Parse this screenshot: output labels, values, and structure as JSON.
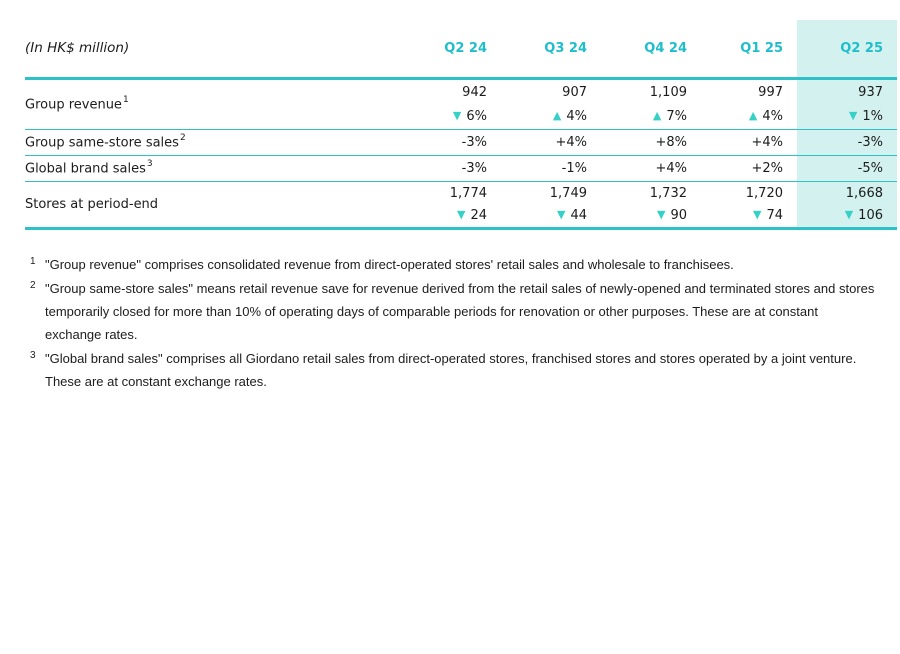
{
  "colors": {
    "accent_teal": "#2fc1c9",
    "header_text_teal": "#1fbecb",
    "arrow_teal": "#35d1c8",
    "highlight_bg": "#d3f1ef",
    "body_text": "#1c1c1c"
  },
  "table": {
    "unit_label": "(In HK$ million)",
    "columns": [
      "Q2 24",
      "Q3 24",
      "Q4 24",
      "Q1 25",
      "Q2 25"
    ],
    "highlighted_column": "Q2 25",
    "rows": [
      {
        "label": "Group revenue",
        "sup": "1",
        "values": [
          "942",
          "907",
          "1,109",
          "997",
          "937"
        ],
        "changes": [
          {
            "arrow": "▼",
            "text": "6%"
          },
          {
            "arrow": "▲",
            "text": "4%"
          },
          {
            "arrow": "▲",
            "text": "7%"
          },
          {
            "arrow": "▲",
            "text": "4%"
          },
          {
            "arrow": "▼",
            "text": "1%"
          }
        ]
      },
      {
        "label": "Group same-store sales",
        "sup": "2",
        "values": [
          "-3%",
          "+4%",
          "+8%",
          "+4%",
          "-3%"
        ]
      },
      {
        "label": "Global brand sales",
        "sup": "3",
        "values": [
          "-3%",
          "-1%",
          "+4%",
          "+2%",
          "-5%"
        ]
      },
      {
        "label": "Stores at period-end",
        "values": [
          "1,774",
          "1,749",
          "1,732",
          "1,720",
          "1,668"
        ],
        "changes": [
          {
            "arrow": "▼",
            "text": "24"
          },
          {
            "arrow": "▼",
            "text": "44"
          },
          {
            "arrow": "▼",
            "text": "90"
          },
          {
            "arrow": "▼",
            "text": "74"
          },
          {
            "arrow": "▼",
            "text": "106"
          }
        ]
      }
    ]
  },
  "footnotes": [
    {
      "marker": "1",
      "lines": [
        "\"Group revenue\" comprises consolidated revenue from direct-operated stores' retail sales and wholesale to franchisees."
      ]
    },
    {
      "marker": "2",
      "lines": [
        "\"Group same-store sales\" means retail revenue save for revenue derived from the retail sales of newly-opened and terminated stores and stores",
        "temporarily closed for more than 10% of operating days of comparable periods for renovation or other purposes. These are at constant",
        "exchange rates."
      ]
    },
    {
      "marker": "3",
      "lines": [
        "\"Global brand sales\" comprises all Giordano retail sales from direct-operated stores, franchised stores and stores operated by a joint venture.",
        "These are at constant exchange rates."
      ]
    }
  ]
}
